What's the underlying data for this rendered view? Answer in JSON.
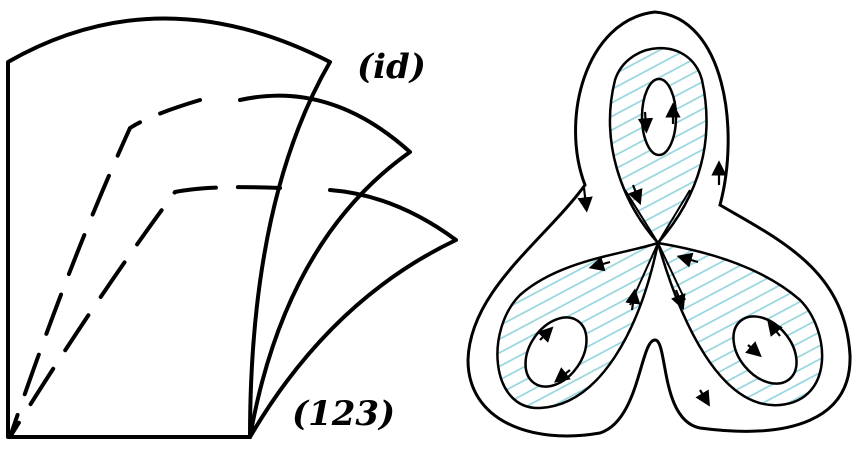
{
  "left_figure": {
    "label_top": "(id)",
    "label_bottom": "(123)"
  },
  "colors": {
    "stroke": "#000000",
    "hatch": "#8fd3dc",
    "background": "#ffffff"
  }
}
